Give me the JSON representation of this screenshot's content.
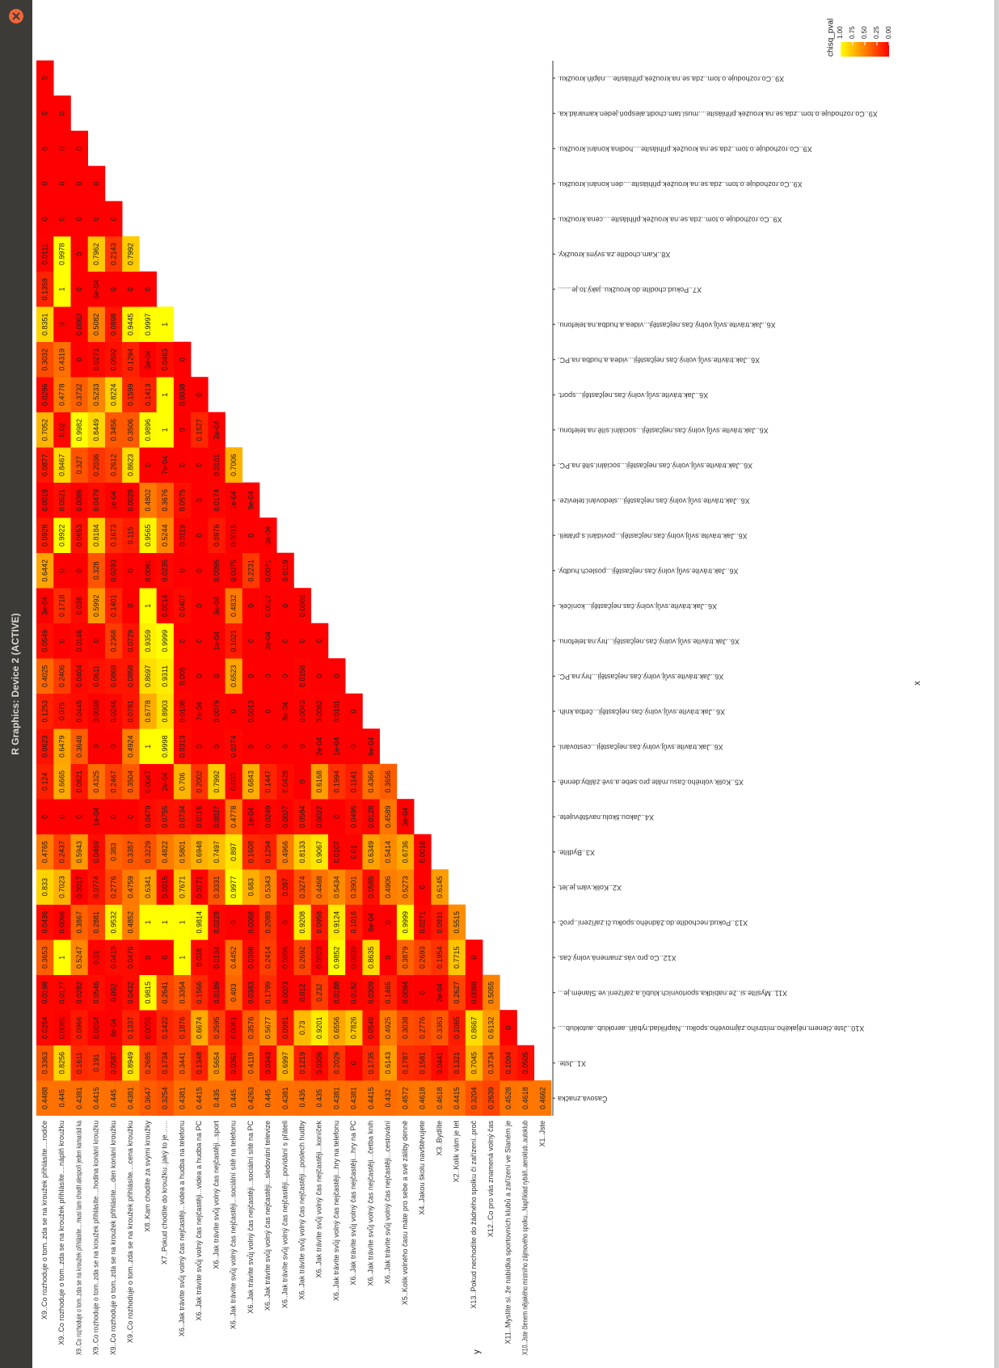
{
  "window": {
    "title": "R Graphics: Device 2 (ACTIVE)"
  },
  "chart_data": {
    "type": "heatmap",
    "xlabel": "x",
    "ylabel": "y",
    "legend_title": "chisq_pval",
    "colorscale": {
      "low": "#ff0000",
      "high": "#ffff00"
    },
    "colorlim": [
      0,
      1
    ],
    "legend_ticks": [
      {
        "value": 1,
        "label": "1.00"
      },
      {
        "value": 0.75,
        "label": "0.75"
      },
      {
        "value": 0.5,
        "label": "0.50"
      },
      {
        "value": 0.25,
        "label": "0.25"
      },
      {
        "value": 0,
        "label": "0.00"
      }
    ],
    "x_categories": [
      "Časová.značka",
      "X1..Jste.",
      "X10..Jste.členem.nějakého.místního.zájmového.spolku...Například.rybáři..aeroklub..autoklub....",
      "X11..Myslíte.si..že.nabídka.sportovních.klubů.a.zařízení.ve.Slaném.je...",
      "X12..Co.pro.vás.znamená.volný.čas.",
      "X13..Pokud.nechodíte.do.žádného.spolku.či.zařízení..proč.",
      "X2..Kolik.vám.je.let.",
      "X3..Bydlíte.",
      "X4..Jakou.školu.navštěvujete.",
      "X5..Kolik.volného.času.máte.pro.sebe.a.své.záliby.denně.",
      "X6..Jak.trávíte.svůj.volný.čas.nejčastěji...cestování.",
      "X6..Jak.trávíte.svůj.volný.čas.nejčastěji...četba.knih.",
      "X6..Jak.trávíte.svůj.volný.čas.nejčastěji...hry.na.PC.",
      "X6..Jak.trávíte.svůj.volný.čas.nejčastěji...hry.na.telefonu.",
      "X6..Jak.trávíte.svůj.volný.čas.nejčastěji...koníček.",
      "X6..Jak.trávíte.svůj.volný.čas.nejčastěji...poslech.hudby.",
      "X6..Jak.trávíte.svůj.volný.čas.nejčastěji...povídání.s.přáteli.",
      "X6..Jak.trávíte.svůj.volný.čas.nejčastěji...sledování.televize.",
      "X6..Jak.trávíte.svůj.volný.čas.nejčastěji...sociální.sítě.na.PC.",
      "X6..Jak.trávíte.svůj.volný.čas.nejčastěji...sociální.sítě.na.telefonu.",
      "X6..Jak.trávíte.svůj.volný.čas.nejčastěji...sport.",
      "X6..Jak.trávíte.svůj.volný.čas.nejčastěji...videa.a.hudba.na.PC.",
      "X6..Jak.trávíte.svůj.volný.čas.nejčastěji...videa.a.hudba.na.telefonu.",
      "X7..Pokud.chodíte.do.kroužku..jaký.to.je.......",
      "X8..Kam.chodíte.za.svými.kroužky.",
      "X9..Co.rozhoduje.o.tom..zda.se.na.kroužek.přihlásíte....cena.kroužku.",
      "X9..Co.rozhoduje.o.tom..zda.se.na.kroužek.přihlásíte....den.konání.kroužku.",
      "X9..Co.rozhoduje.o.tom..zda.se.na.kroužek.přihlásíte....hodina.konání.kroužku.",
      "X9..Co.rozhoduje.o.tom..zda.se.na.kroužek.přihlásíte....musí.tam.chodit.alespoň.jeden.kamarád.ka.",
      "X9..Co.rozhoduje.o.tom..zda.se.na.kroužek.přihlásíte....náplň.kroužku."
    ],
    "y_categories": [
      "X9..Co rozhoduje o tom..zda se na kroužek přihlásíte....rodiče",
      "X9..Co rozhoduje o tom..zda se na kroužek přihlásíte....náplň kroužku",
      "X9..Co rozhoduje o tom..zda se na kroužek přihlásíte....musí tam chodit alespoň jeden kamarád ka",
      "X9..Co rozhoduje o tom..zda se na kroužek přihlásíte....hodina konání kroužku",
      "X9..Co rozhoduje o tom..zda se na kroužek přihlásíte....den konání kroužku",
      "X9..Co rozhoduje o tom..zda se na kroužek přihlásíte....cena kroužku",
      "X8..Kam chodíte za svými kroužky",
      "X7..Pokud chodíte do kroužku..jaký to je.......",
      "X6..Jak trávíte svůj volný čas nejčastěji...videa a hudba na telefonu",
      "X6..Jak trávíte svůj volný čas nejčastěji...videa a hudba na PC",
      "X6..Jak trávíte svůj volný čas nejčastěji...sport",
      "X6..Jak trávíte svůj volný čas nejčastěji...sociální sítě na telefonu",
      "X6..Jak trávíte svůj volný čas nejčastěji...sociální sítě na PC",
      "X6..Jak trávíte svůj volný čas nejčastěji...sledování televize",
      "X6..Jak trávíte svůj volný čas nejčastěji...povídání s přáteli",
      "X6..Jak trávíte svůj volný čas nejčastěji...poslech hudby",
      "X6..Jak trávíte svůj volný čas nejčastěji...koníček",
      "X6..Jak trávíte svůj volný čas nejčastěji...hry na telefonu",
      "X6..Jak trávíte svůj volný čas nejčastěji...hry na PC",
      "X6..Jak trávíte svůj volný čas nejčastěji...četba knih",
      "X6..Jak trávíte svůj volný čas nejčastěji...cestování",
      "X5..Kolik volného času máte pro sebe a své záliby denně",
      "X4..Jakou školu navštěvujete",
      "X3..Bydlíte",
      "X2..Kolik vám je let",
      "X13..Pokud nechodíte do žádného spolku či zařízení..proč",
      "X12..Co pro vás znamená volný čas",
      "X11..Myslíte si..že nabídka sportovních klubů a zařízení ve Slaném je",
      "X10..Jste členem nějakého místního zájmového spolku...Například rybáři..aeroklub..autoklub",
      "X1..Jste"
    ],
    "cells_by_x": [
      {
        "values": [
          0.4488,
          0.445,
          0.4381,
          0.4415,
          0.445,
          0.4381,
          0.3647,
          0.3254,
          0.4381,
          0.4415,
          0.435,
          0.445,
          0.4263,
          0.445,
          0.4381,
          0.435,
          0.435,
          0.4381,
          0.4381,
          0.4415,
          0.432,
          0.4572,
          0.4618,
          0.4618,
          0.4415,
          0.3204,
          0.2639,
          0.4528,
          0.4618,
          0.4662
        ]
      },
      {
        "values": [
          0.3363,
          0.8256,
          0.1611,
          0.191,
          0.0587,
          0.8949,
          0.2685,
          0.1734,
          0.3441,
          0.1348,
          0.5654,
          0.0361,
          0.4119,
          0.0343,
          0.6997,
          0.1219,
          0.0306,
          0.2029,
          0,
          0.1735,
          0.6143,
          0.1787,
          0.1581,
          0.0441,
          0.1321,
          0.7045,
          0.3734,
          0.1094,
          0.0505
        ]
      },
      {
        "values": [
          0.0284,
          0.0085,
          0.0966,
          0.0034,
          0.0008,
          0.1337,
          0.0055,
          0.1422,
          0.1876,
          0.6674,
          0.2595,
          0.0061,
          0.3576,
          0.5677,
          0.0981,
          0.73,
          0.9201,
          0.6556,
          0.7826,
          0.0549,
          0.4925,
          0.3038,
          0.2776,
          0.3363,
          0.1065,
          0.8667,
          0.6132,
          0
        ],
        "value_labels": [
          "0.0284",
          "0.0085",
          "0.0966",
          "0.0034",
          "8e-04",
          "0.1337",
          "0.0055",
          "0.1422",
          "0.1876",
          "0.6674",
          "0.2595",
          "0.0061",
          "0.3576",
          "0.5677",
          "0.0981",
          "0.73",
          "0.9201",
          "0.6556",
          "0.7826",
          "0.0549",
          "0.4925",
          "0.3038",
          "0.2776",
          "0.3363",
          "0.1065",
          "0.8667",
          "0.6132",
          "0"
        ]
      },
      {
        "values": [
          0.0198,
          0.0177,
          0.0282,
          0.0546,
          0.002,
          0.0432,
          0.9815,
          0.2641,
          0.3354,
          0.1566,
          0.0189,
          0.403,
          0.0383,
          0.1799,
          0.0023,
          0.012,
          0.232,
          0.0188,
          0.0182,
          0.0309,
          0.1465,
          0.0094,
          0,
          0.0002,
          0.2627,
          0.0088,
          0.5055
        ],
        "value_labels": [
          "0.0198",
          "0.0177",
          "0.0282",
          "0.0546",
          "0.002",
          "0.0432",
          "0.9815",
          "0.2641",
          "0.3354",
          "0.1566",
          "0.0189",
          "0.403",
          "0.0383",
          "0.1799",
          "0.0023",
          "0.012",
          "0.232",
          "0.0188",
          "0.0182",
          "0.0309",
          "0.1465",
          "0.0094",
          "0",
          "2e-04",
          "0.2627",
          "0.0088",
          "0.5055"
        ]
      },
      {
        "values": [
          0.3653,
          1,
          0.5247,
          0.01,
          0.0419,
          0.0476,
          0,
          0,
          1,
          0.038,
          0.0134,
          0.4452,
          0.0398,
          0.2414,
          0.0096,
          0.2692,
          0.0023,
          0.9852,
          0.0039,
          0.8635,
          0,
          0.3879,
          0.2693,
          0.1954,
          0.7715,
          0
        ]
      },
      {
        "values": [
          0.0436,
          0.0066,
          0.3867,
          0.2881,
          0.9532,
          0.4852,
          1,
          1,
          1,
          0.9814,
          0.0228,
          0,
          0.0068,
          0.2089,
          0,
          0.9208,
          0.0958,
          0.9124,
          0.1016,
          0.0006,
          0,
          0.9999,
          0.0271,
          0.0931,
          0.5515
        ],
        "value_labels": [
          "0.0436",
          "0.0066",
          "0.3867",
          "0.2881",
          "0.9532",
          "0.4852",
          "1",
          "1",
          "1",
          "0.9814",
          "0.0228",
          "0",
          "0.0068",
          "0.2089",
          "0",
          "0.9208",
          "0.0958",
          "0.9124",
          "0.1016",
          "6e-04",
          "0",
          "0.9999",
          "0.0271",
          "0.0931",
          "0.5515"
        ]
      },
      {
        "values": [
          0.833,
          0.7023,
          0.0017,
          0.0774,
          0.2776,
          0.4759,
          0.6341,
          0.0015,
          0.7671,
          0.0171,
          0.3331,
          0.9977,
          0.683,
          0.5343,
          0.087,
          0.3274,
          0.4468,
          0.5434,
          0.3901,
          0.0585,
          0.4906,
          0.5273,
          0,
          0.6145
        ]
      },
      {
        "values": [
          0.4765,
          0.2437,
          0.5943,
          0.0469,
          0.383,
          0.3357,
          0.3229,
          0.4822,
          0.5801,
          0.6948,
          0.7497,
          0.897,
          0.1608,
          0.1294,
          0.4966,
          0.8133,
          0.9067,
          0.0107,
          0.01,
          0.6349,
          0.5414,
          0.6736,
          0.0016
        ]
      },
      {
        "values": [
          0,
          0,
          0,
          0.0001,
          0,
          0,
          0.0479,
          0.0755,
          0.0734,
          0.0116,
          0.0027,
          0.4778,
          0.0001,
          0.0249,
          0.0027,
          0.0584,
          0.0022,
          0,
          0.0495,
          0.0128,
          0.4589,
          0.0003
        ],
        "value_labels": [
          "0",
          "0",
          "0",
          "1e-04",
          "0",
          "0",
          "0.0479",
          "0.0755",
          "0.0734",
          "0.0116",
          "0.0027",
          "0.4778",
          "1e-04",
          "0.0249",
          "0.0027",
          "0.0584",
          "0.0022",
          "0",
          "0.0495",
          "0.0128",
          "0.4589",
          "3e-04"
        ]
      },
      {
        "values": [
          0.124,
          0.6665,
          0.0821,
          0.4325,
          0.2467,
          0.3504,
          0.0047,
          0.0002,
          0.706,
          0.2002,
          0.7992,
          0.003,
          0.6843,
          0.1447,
          0.0428,
          0,
          0.6168,
          0.1994,
          0.1141,
          0.4366,
          0.3656
        ],
        "value_labels": [
          "0.124",
          "0.6665",
          "0.0821",
          "0.4325",
          "0.2467",
          "0.3504",
          "0.0047",
          "2e-04",
          "0.706",
          "0.2002",
          "0.7992",
          "0.003",
          "0.6843",
          "0.1447",
          "0.0428",
          "0",
          "0.6168",
          "0.1994",
          "0.1141",
          "0.4366",
          "0.3656"
        ]
      },
      {
        "values": [
          0.0623,
          0.6479,
          0.3648,
          0,
          0,
          0.4924,
          1,
          0.9998,
          0.0313,
          0,
          0,
          0.0274,
          0,
          0,
          0,
          0,
          0.0002,
          0.0001,
          0,
          0.0006
        ],
        "value_labels": [
          "0.0623",
          "0.6479",
          "0.3648",
          "0",
          "0",
          "0.4924",
          "1",
          "0.9998",
          "0.0313",
          "0",
          "0",
          "0.0274",
          "0",
          "0",
          "0",
          "0",
          "2e-04",
          "1e-04",
          "0",
          "6e-04"
        ]
      },
      {
        "values": [
          0.1253,
          0.075,
          0.0445,
          0.0038,
          0.0246,
          0.0781,
          0.6778,
          0.8903,
          0.0108,
          0.0007,
          0.0079,
          0,
          0.0013,
          0,
          0.0008,
          0.0043,
          0.0082,
          0.0101,
          0
        ],
        "value_labels": [
          "0.1253",
          "0.075",
          "0.0445",
          "0.0038",
          "0.0246",
          "0.0781",
          "0.6778",
          "0.8903",
          "0.0108",
          "7e-04",
          "0.0079",
          "0",
          "0.0013",
          "0",
          "8e-04",
          "0.0043",
          "0.0082",
          "0.0101",
          "0"
        ]
      },
      {
        "values": [
          0.4025,
          0.2406,
          0.0404,
          0.0611,
          0.0869,
          0.0858,
          0.8697,
          0.9311,
          0.005,
          0,
          0,
          0.6523,
          0,
          0,
          0,
          0.0158,
          0,
          0
        ]
      },
      {
        "values": [
          0.0549,
          0,
          0.0146,
          0,
          0.2368,
          0.0729,
          0.9359,
          0.9999,
          0,
          0,
          0.0001,
          0.1021,
          0,
          0.0003,
          0,
          0,
          0
        ],
        "value_labels": [
          "0.0549",
          "0",
          "0.0146",
          "0",
          "0.2368",
          "0.0729",
          "0.9359",
          "0.9999",
          "0",
          "0",
          "1e-04",
          "0.1021",
          "0",
          "3e-04",
          "0",
          "0",
          "0"
        ]
      },
      {
        "values": [
          0.0003,
          0.1718,
          0.038,
          0.5992,
          0.1401,
          0,
          1,
          0.0014,
          0.0407,
          0,
          0.0003,
          0.4832,
          0,
          0.0027,
          0,
          0.0065
        ],
        "value_labels": [
          "3e-04",
          "0.1718",
          "0.038",
          "0.5992",
          "0.1401",
          "0",
          "1",
          "0.0014",
          "0.0407",
          "0",
          "3e-04",
          "0.4832",
          "0",
          "0.0027",
          "0",
          "0.0065"
        ]
      },
      {
        "values": [
          0.6442,
          0,
          0,
          0.328,
          0.0293,
          0,
          0.0061,
          0.0235,
          0,
          0,
          0.0095,
          0.0075,
          0.2231,
          0.0071,
          0.0119
        ]
      },
      {
        "values": [
          0.0928,
          0.9922,
          0.0653,
          0.8184,
          0.1673,
          0.115,
          0.9565,
          0.5244,
          0.0119,
          0,
          0.0976,
          0.0015,
          0,
          0.0003
        ],
        "value_labels": [
          "0.0928",
          "0.9922",
          "0.0653",
          "0.8184",
          "0.1673",
          "0.115",
          "0.9565",
          "0.5244",
          "0.0119",
          "0",
          "0.0976",
          "0.0015",
          "0",
          "3e-04"
        ]
      },
      {
        "values": [
          0.0019,
          0.0521,
          0.0086,
          0.0479,
          0.0001,
          0.0028,
          0.4802,
          0.3676,
          0.0575,
          0,
          0.0174,
          0.0001,
          0.0009
        ],
        "value_labels": [
          "0.0019",
          "0.0521",
          "0.0086",
          "0.0479",
          "1e-04",
          "0.0028",
          "0.4802",
          "0.3676",
          "0.0575",
          "0",
          "0.0174",
          "1e-04",
          "9e-04"
        ]
      },
      {
        "values": [
          0.0877,
          0.8467,
          0.327,
          0.2036,
          0.2612,
          0.8623,
          0,
          0.0007,
          0,
          0,
          0.0101,
          0.7006
        ],
        "value_labels": [
          "0.0877",
          "0.8467",
          "0.327",
          "0.2036",
          "0.2612",
          "0.8623",
          "0",
          "7e-04",
          "0",
          "0",
          "0.0101",
          "0.7006"
        ]
      },
      {
        "values": [
          0.7052,
          0.02,
          0.9982,
          0.8449,
          0.3456,
          0.3506,
          0.9896,
          1,
          0,
          0.1527,
          0.0002
        ],
        "value_labels": [
          "0.7052",
          "0.02",
          "0.9982",
          "0.8449",
          "0.3456",
          "0.3506",
          "0.9896",
          "1",
          "0",
          "0.1527",
          "2e-04"
        ]
      },
      {
        "values": [
          0.0296,
          0.4778,
          0.3732,
          0.5233,
          0.8224,
          0.1599,
          0.1413,
          1,
          0.0038,
          0
        ]
      },
      {
        "values": [
          0.3032,
          0.4319,
          0,
          0.0273,
          0.0592,
          0.1294,
          0.0003,
          0.0463,
          0
        ],
        "value_labels": [
          "0.3032",
          "0.4319",
          "0",
          "0.0273",
          "0.0592",
          "0.1294",
          "3e-04",
          "0.0463",
          "0"
        ]
      },
      {
        "values": [
          0.8351,
          0,
          0.0062,
          0.5082,
          0.0898,
          0.9445,
          0.9997,
          1
        ]
      },
      {
        "values": [
          0.1359,
          1,
          0,
          0.0006,
          0,
          0,
          0
        ],
        "value_labels": [
          "0.1359",
          "1",
          "0",
          "6e-04",
          "0",
          "0",
          "0"
        ]
      },
      {
        "values": [
          0.0111,
          0.9978,
          0,
          0.7962,
          0.2143,
          0.7992
        ]
      },
      {
        "values": [
          0,
          0,
          0,
          0,
          0
        ]
      },
      {
        "values": [
          0,
          0,
          0,
          0
        ]
      },
      {
        "values": [
          0,
          0,
          0
        ]
      },
      {
        "values": [
          0,
          0
        ]
      },
      {
        "values": [
          0
        ]
      }
    ]
  }
}
